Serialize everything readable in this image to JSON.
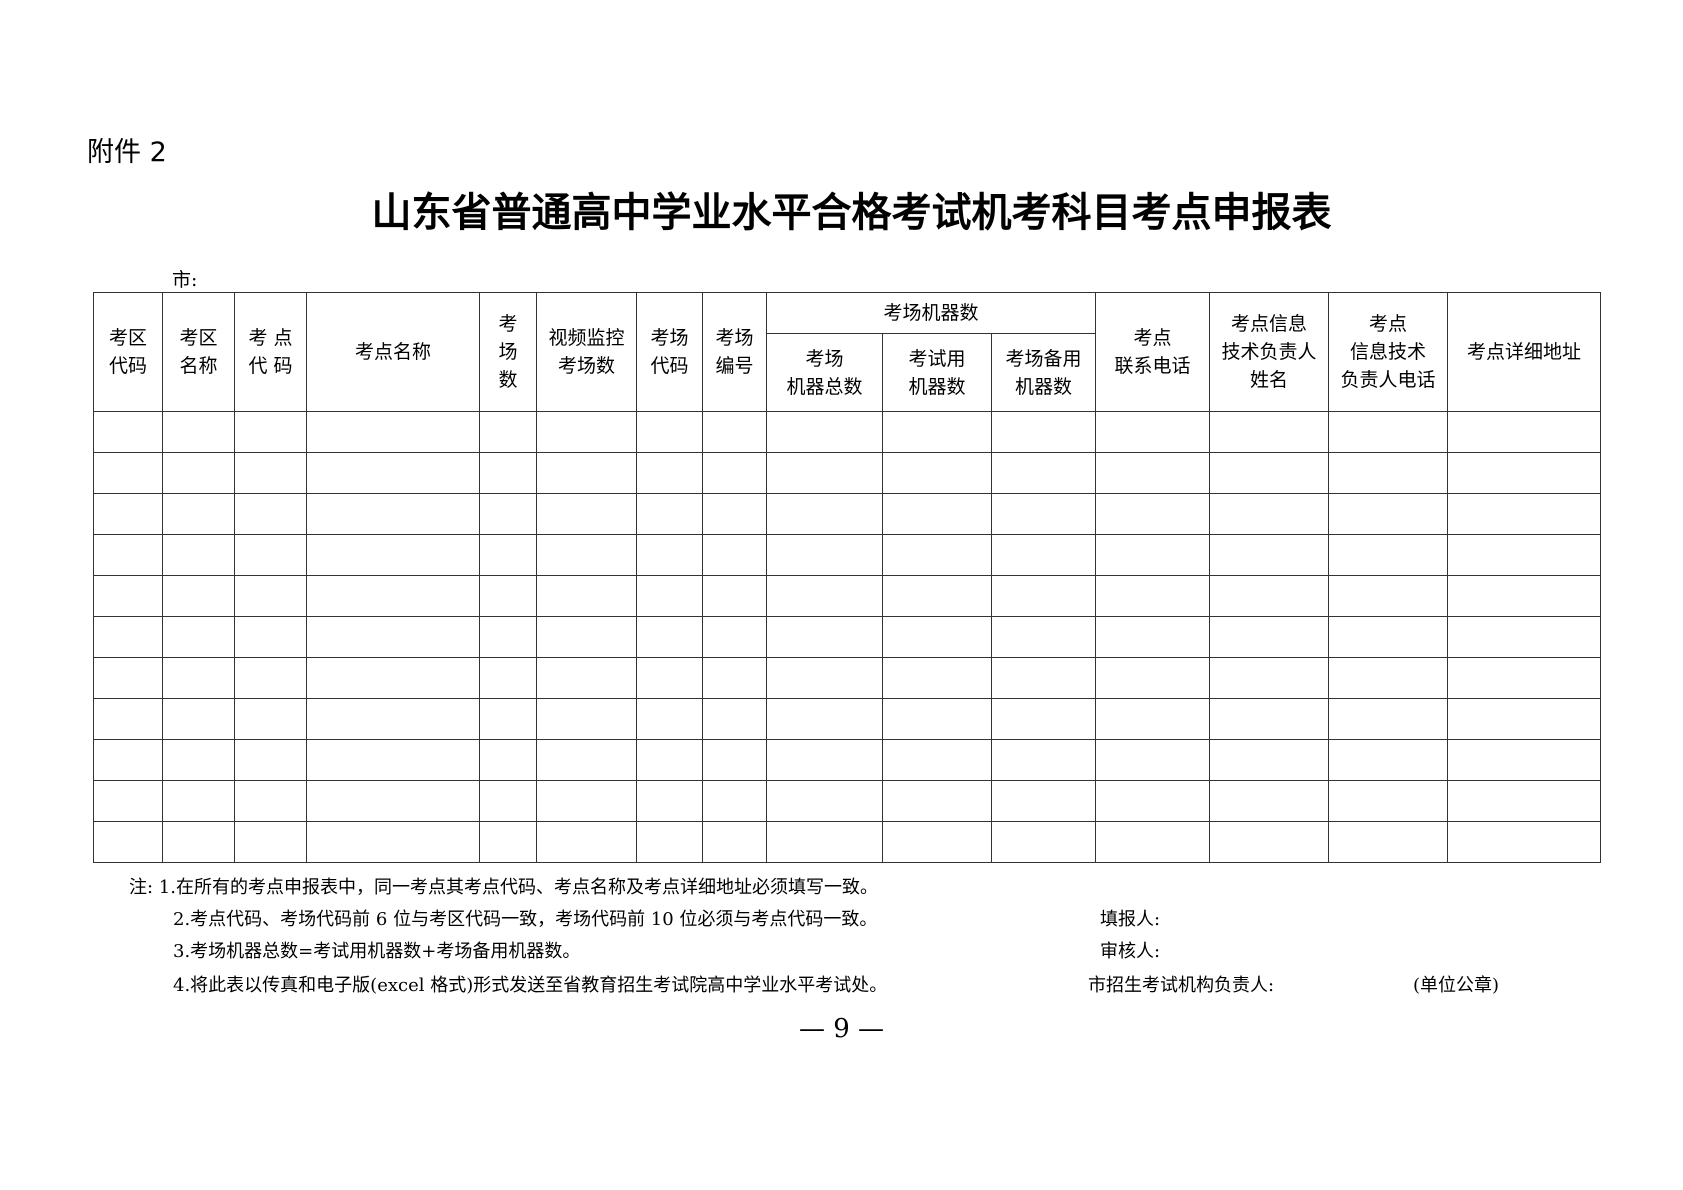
{
  "attachment_label": "附件 2",
  "title": "山东省普通高中学业水平合格考试机考科目考点申报表",
  "city_label": "市:",
  "table": {
    "headers": [
      "考区\n代码",
      "考区\n名称",
      "考 点\n代 码",
      "考点名称",
      "考\n场\n数",
      "视频监控\n考场数",
      "考场\n代码",
      "考场\n编号",
      "考点\n联系电话",
      "考点信息\n技术负责人\n姓名",
      "考点\n信息技术\n负责人电话",
      "考点详细地址"
    ],
    "group_header": "考场机器数",
    "sub_headers": [
      "考场\n机器总数",
      "考试用\n机器数",
      "考场备用\n机器数"
    ],
    "empty_rows": 11
  },
  "notes": [
    "注: 1.在所有的考点申报表中，同一考点其考点代码、考点名称及考点详细地址必须填写一致。",
    "2.考点代码、考场代码前 6 位与考区代码一致，考场代码前 10 位必须与考点代码一致。",
    "3.考场机器总数=考试用机器数+考场备用机器数。",
    "4.将此表以传真和电子版(excel 格式)形式发送至省教育招生考试院高中学业水平考试处。"
  ],
  "fields": [
    "填报人:",
    "审核人:",
    "市招生考试机构负责人:"
  ],
  "seal_label": "(单位公章)",
  "page_number": "— 9 —"
}
